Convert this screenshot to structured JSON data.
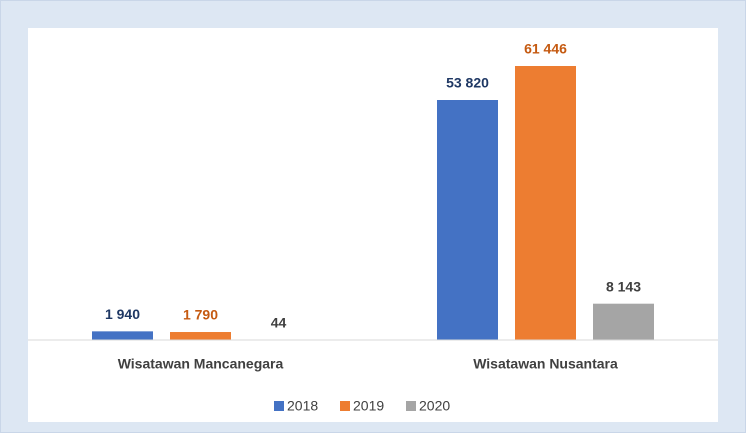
{
  "chart_data": {
    "type": "bar",
    "categories": [
      "Wisatawan Mancanegara",
      "Wisatawan Nusantara"
    ],
    "series": [
      {
        "name": "2018",
        "color": "#4472c4",
        "label_color": "#1f3864",
        "values": [
          1940,
          53820
        ],
        "value_labels": [
          "1 940",
          "53 820"
        ]
      },
      {
        "name": "2019",
        "color": "#ed7d31",
        "label_color": "#c55a11",
        "values": [
          1790,
          61446
        ],
        "value_labels": [
          "1 790",
          "61 446"
        ]
      },
      {
        "name": "2020",
        "color": "#a5a5a5",
        "label_color": "#404040",
        "values": [
          44,
          8143
        ],
        "value_labels": [
          "44",
          "8 143"
        ]
      }
    ],
    "legend": "bottom"
  }
}
